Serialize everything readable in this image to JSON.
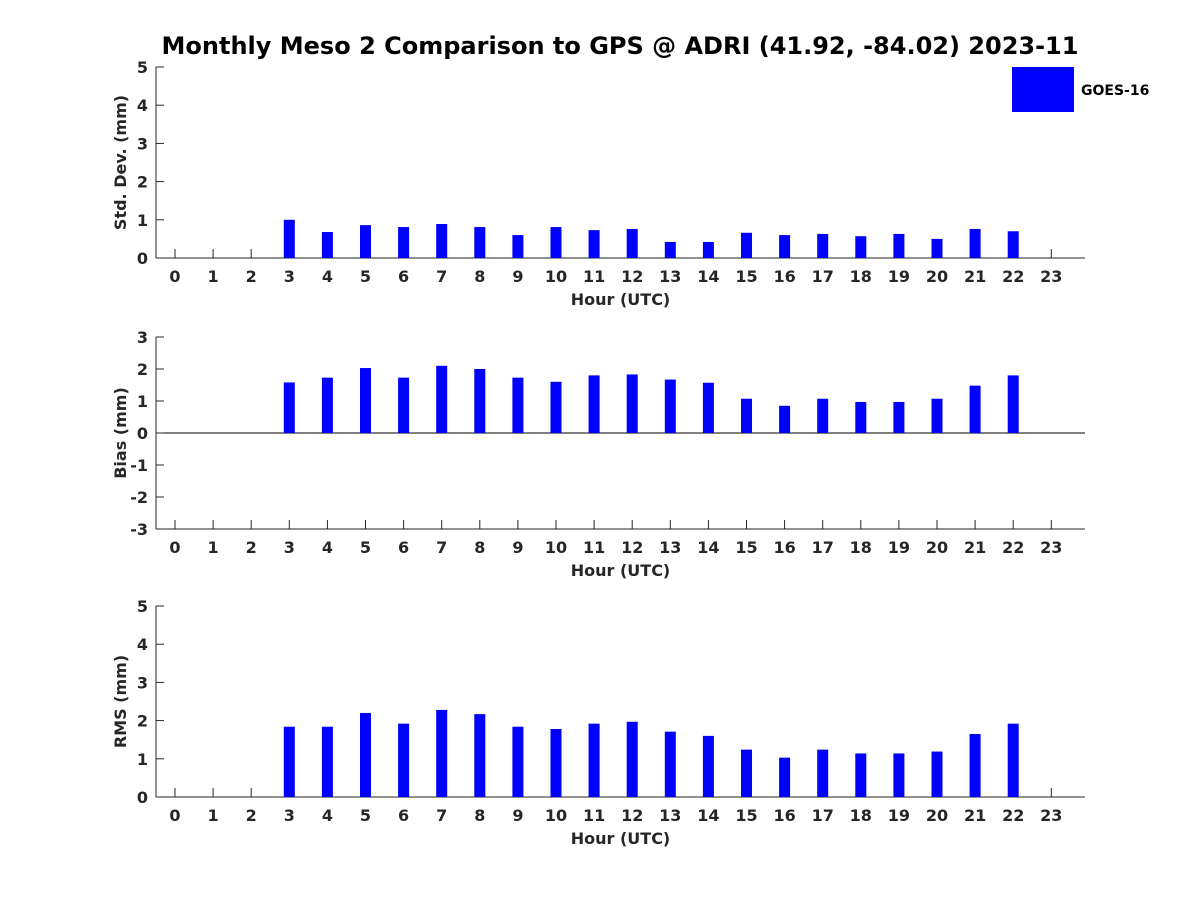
{
  "title": "Monthly Meso 2 Comparison to GPS @ ADRI (41.92, -84.02) 2023-11",
  "legend": {
    "label": "GOES-16",
    "color": "#0000ff",
    "placement": "top-right"
  },
  "colors": {
    "bar": "#0000ff",
    "axis": "#262626"
  },
  "chart_data": [
    {
      "type": "bar",
      "title": "Monthly Meso 2 Comparison to GPS @ ADRI (41.92, -84.02) 2023-11",
      "xlabel": "Hour (UTC)",
      "ylabel": "Std. Dev. (mm)",
      "ylim": [
        0,
        5
      ],
      "yticks": [
        0,
        1,
        2,
        3,
        4,
        5
      ],
      "categories": [
        "0",
        "1",
        "2",
        "3",
        "4",
        "5",
        "6",
        "7",
        "8",
        "9",
        "10",
        "11",
        "12",
        "13",
        "14",
        "15",
        "16",
        "17",
        "18",
        "19",
        "20",
        "21",
        "22",
        "23"
      ],
      "series": [
        {
          "name": "GOES-16",
          "values": [
            null,
            null,
            null,
            1.0,
            0.68,
            0.86,
            0.81,
            0.89,
            0.81,
            0.6,
            0.81,
            0.73,
            0.76,
            0.42,
            0.42,
            0.66,
            0.6,
            0.63,
            0.57,
            0.63,
            0.5,
            0.76,
            0.7,
            null
          ]
        }
      ]
    },
    {
      "type": "bar",
      "xlabel": "Hour (UTC)",
      "ylabel": "Bias (mm)",
      "ylim": [
        -3,
        3
      ],
      "yticks": [
        -3,
        -2,
        -1,
        0,
        1,
        2,
        3
      ],
      "categories": [
        "0",
        "1",
        "2",
        "3",
        "4",
        "5",
        "6",
        "7",
        "8",
        "9",
        "10",
        "11",
        "12",
        "13",
        "14",
        "15",
        "16",
        "17",
        "18",
        "19",
        "20",
        "21",
        "22",
        "23"
      ],
      "series": [
        {
          "name": "GOES-16",
          "values": [
            null,
            null,
            null,
            1.58,
            1.73,
            2.03,
            1.73,
            2.1,
            2.0,
            1.73,
            1.6,
            1.8,
            1.83,
            1.67,
            1.57,
            1.07,
            0.85,
            1.07,
            0.97,
            0.97,
            1.07,
            1.48,
            1.8,
            null
          ]
        }
      ]
    },
    {
      "type": "bar",
      "xlabel": "Hour (UTC)",
      "ylabel": "RMS (mm)",
      "ylim": [
        0,
        5
      ],
      "yticks": [
        0,
        1,
        2,
        3,
        4,
        5
      ],
      "categories": [
        "0",
        "1",
        "2",
        "3",
        "4",
        "5",
        "6",
        "7",
        "8",
        "9",
        "10",
        "11",
        "12",
        "13",
        "14",
        "15",
        "16",
        "17",
        "18",
        "19",
        "20",
        "21",
        "22",
        "23"
      ],
      "series": [
        {
          "name": "GOES-16",
          "values": [
            null,
            null,
            null,
            1.84,
            1.84,
            2.2,
            1.92,
            2.28,
            2.17,
            1.84,
            1.78,
            1.92,
            1.97,
            1.71,
            1.6,
            1.24,
            1.03,
            1.24,
            1.14,
            1.14,
            1.19,
            1.65,
            1.92,
            null
          ]
        }
      ]
    }
  ]
}
